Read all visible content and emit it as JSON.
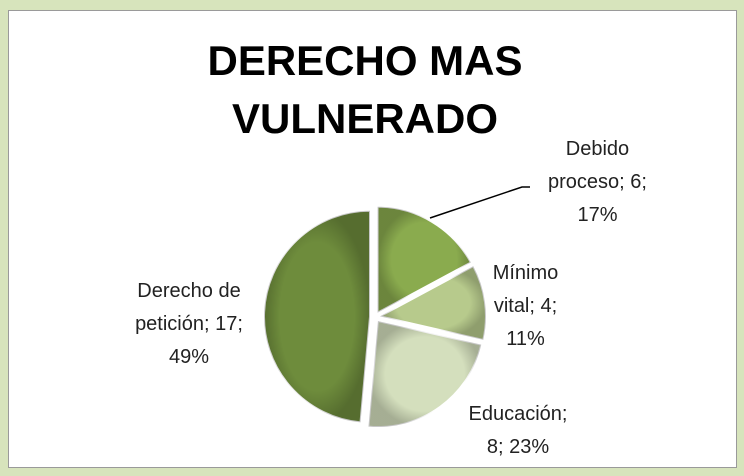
{
  "chart_data": {
    "type": "pie",
    "title": "DERECHO MAS VULNERADO",
    "values": [
      6,
      4,
      8,
      17
    ],
    "value_labels": [
      "Debido proceso; 6; 17%",
      "Mínimo vital; 4; 11%",
      "Educación; 8; 23%",
      "Derecho de petición; 17; 49%"
    ],
    "colors": [
      "#8aab4e",
      "#b7ca8c",
      "#d4dfbd",
      "#6e8c3c"
    ]
  }
}
